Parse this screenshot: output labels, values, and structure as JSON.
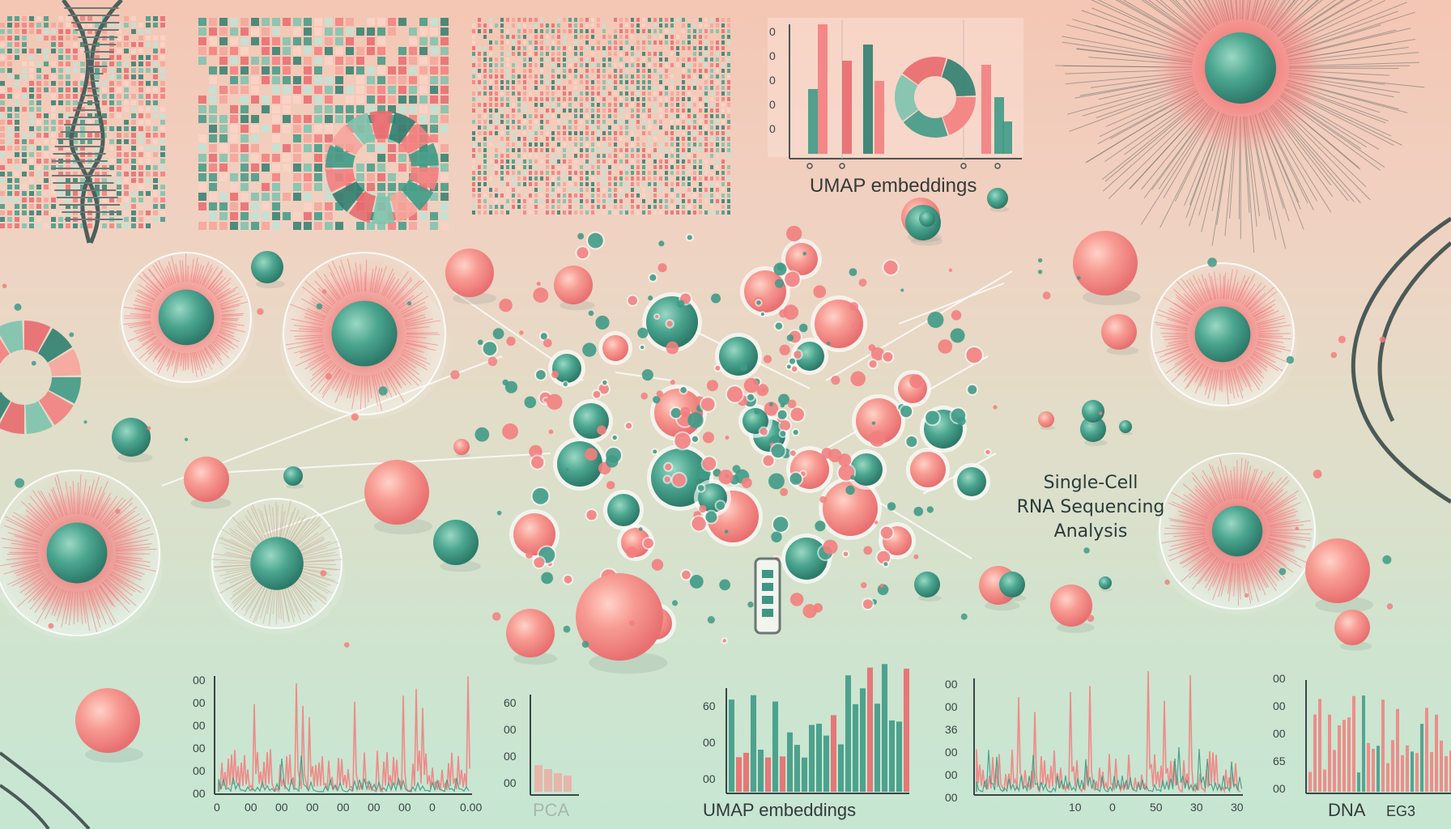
{
  "title": {
    "line1": "Single-Cell",
    "line2": "RNA Sequencing",
    "line3": "Analysis"
  },
  "labels": {
    "top_chart_caption": "UMAP embeddings",
    "bottom_umap_caption": "UMAP embeddings",
    "pca_caption": "PCA",
    "dna_caption": "DNA",
    "dna_tick": "EG3"
  },
  "tick_labels": {
    "top_chart_y": [
      "0",
      "0",
      "0",
      "0",
      "0"
    ],
    "chart1_y": [
      "00",
      "00",
      "00",
      "00",
      "00",
      "00"
    ],
    "chart1_x": [
      "0",
      "00",
      "00",
      "00",
      "00",
      "00",
      "00",
      "0",
      "0.00"
    ],
    "pca_y": [
      "60",
      "00",
      "00",
      "00"
    ],
    "umap_y": [
      "60",
      "00",
      "00"
    ],
    "chart4_y": [
      "00",
      "00",
      "36",
      "00",
      "00",
      "00"
    ],
    "chart4_x": [
      "10",
      "0",
      "50",
      "30",
      "30"
    ],
    "dna_y": [
      "00",
      "00",
      "00",
      "65",
      "00"
    ]
  },
  "colors": {
    "coral": "#f27f7f",
    "teal": "#3f9a86",
    "teal_dark": "#2f7f70",
    "background_top": "#f4c6b4",
    "background_bottom": "#c6e6d2"
  }
}
